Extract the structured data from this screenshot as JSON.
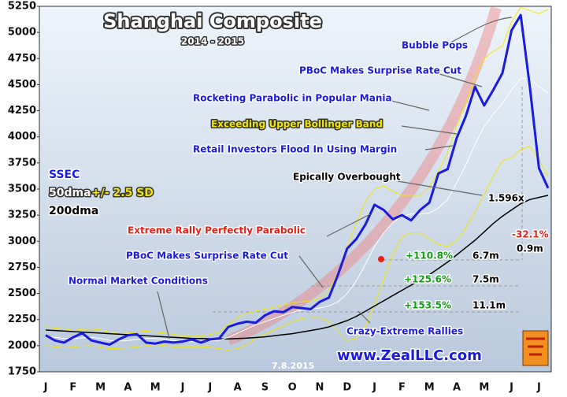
{
  "chart_data": {
    "type": "line",
    "title": "Shanghai Composite",
    "subtitle": "2014 - 2015",
    "categories": [
      "J",
      null,
      null,
      "F",
      null,
      null,
      "M",
      null,
      null,
      "A",
      null,
      null,
      "M",
      null,
      null,
      "J",
      null,
      null,
      "J",
      null,
      null,
      "A",
      null,
      null,
      "S",
      null,
      null,
      "O",
      null,
      null,
      "N",
      null,
      null,
      "D",
      null,
      null,
      "J",
      null,
      null,
      "F",
      null,
      null,
      "M",
      null,
      null,
      "A",
      null,
      null,
      "M",
      null,
      null,
      "J",
      null,
      null,
      "J",
      null
    ],
    "ylim": [
      1750,
      5250
    ],
    "yticks": [
      1750,
      2000,
      2250,
      2500,
      2750,
      3000,
      3250,
      3500,
      3750,
      4000,
      4250,
      4500,
      4750,
      5000,
      5250
    ],
    "series": [
      {
        "name": "SSEC",
        "color": "#1a1ae0",
        "values": [
          2100,
          2050,
          2030,
          2080,
          2120,
          2050,
          2030,
          2010,
          2060,
          2100,
          2110,
          2030,
          2020,
          2040,
          2030,
          2040,
          2060,
          2030,
          2060,
          2070,
          2180,
          2210,
          2230,
          2220,
          2290,
          2330,
          2320,
          2370,
          2360,
          2350,
          2420,
          2460,
          2680,
          2930,
          3020,
          3160,
          3350,
          3300,
          3210,
          3250,
          3200,
          3300,
          3370,
          3650,
          3690,
          3990,
          4200,
          4480,
          4300,
          4450,
          4610,
          5020,
          5166,
          4480,
          3700,
          3510
        ]
      },
      {
        "name": "50dma",
        "color": "#ffffff",
        "values": [
          2090,
          2080,
          2070,
          2065,
          2075,
          2080,
          2070,
          2050,
          2045,
          2050,
          2060,
          2070,
          2070,
          2060,
          2050,
          2040,
          2040,
          2040,
          2045,
          2050,
          2080,
          2120,
          2160,
          2200,
          2230,
          2260,
          2290,
          2320,
          2340,
          2350,
          2360,
          2380,
          2420,
          2500,
          2620,
          2780,
          2950,
          3080,
          3180,
          3240,
          3260,
          3260,
          3270,
          3320,
          3400,
          3560,
          3730,
          3930,
          4100,
          4220,
          4320,
          4450,
          4560,
          4560,
          4480,
          4420
        ]
      },
      {
        "name": "+/- 2.5 SD",
        "color": "#f2e600",
        "values": [
          2180,
          2170,
          2160,
          2145,
          2155,
          2160,
          2150,
          2130,
          2115,
          2120,
          2130,
          2140,
          2130,
          2120,
          2110,
          2090,
          2090,
          2090,
          2105,
          2130,
          2200,
          2270,
          2310,
          2330,
          2350,
          2370,
          2390,
          2410,
          2420,
          2430,
          2450,
          2530,
          2700,
          2950,
          3170,
          3380,
          3500,
          3530,
          3480,
          3440,
          3440,
          3440,
          3520,
          3670,
          3850,
          4110,
          4330,
          4580,
          4750,
          4820,
          4870,
          5100,
          5240,
          5210,
          5180,
          5220
        ],
        "lower": [
          2000,
          1990,
          1980,
          1985,
          1995,
          2000,
          1990,
          1970,
          1975,
          1980,
          1990,
          2000,
          2010,
          2000,
          1990,
          1990,
          1990,
          1990,
          1985,
          1970,
          1960,
          1970,
          2010,
          2070,
          2110,
          2150,
          2190,
          2230,
          2260,
          2270,
          2270,
          2230,
          2140,
          2050,
          2070,
          2180,
          2400,
          2630,
          2880,
          3040,
          3080,
          3080,
          3020,
          2970,
          2950,
          3010,
          3130,
          3280,
          3450,
          3620,
          3770,
          3800,
          3880,
          3910,
          3780,
          3620
        ]
      },
      {
        "name": "200dma",
        "color": "#000000",
        "values": [
          2150,
          2145,
          2140,
          2135,
          2130,
          2125,
          2120,
          2115,
          2110,
          2105,
          2100,
          2095,
          2090,
          2085,
          2080,
          2075,
          2070,
          2068,
          2066,
          2065,
          2065,
          2068,
          2072,
          2078,
          2085,
          2095,
          2105,
          2115,
          2130,
          2145,
          2160,
          2180,
          2210,
          2240,
          2280,
          2330,
          2380,
          2430,
          2480,
          2530,
          2580,
          2630,
          2680,
          2740,
          2800,
          2870,
          2940,
          3010,
          3090,
          3170,
          3240,
          3300,
          3360,
          3400,
          3420,
          3440
        ]
      }
    ],
    "annotations": [
      {
        "text": "Bubble Pops",
        "color": "#1a1ae0"
      },
      {
        "text": "PBoC Makes Surprise Rate Cut",
        "color": "#1a1ae0"
      },
      {
        "text": "Rocketing Parabolic in Popular Mania",
        "color": "#1a1ae0"
      },
      {
        "text": "Exceeding Upper Bollinger Band",
        "color": "#f2e600"
      },
      {
        "text": "Retail Investors Flood In Using Margin",
        "color": "#1a1ae0"
      },
      {
        "text": "Epically Overbought",
        "color": "#000000"
      },
      {
        "text": "Extreme Rally Perfectly Parabolic",
        "color": "#e8201a"
      },
      {
        "text": "PBoC Makes Surprise Rate Cut",
        "color": "#1a1ae0"
      },
      {
        "text": "Normal Market Conditions",
        "color": "#1a1ae0"
      },
      {
        "text": "Crazy-Extreme Rallies",
        "color": "#1a1ae0"
      },
      {
        "text": "1.596x",
        "color": "#000000"
      },
      {
        "text": "-32.1%",
        "color": "#e8201a"
      },
      {
        "text": "0.9m",
        "color": "#000000"
      },
      {
        "text": "+110.8%",
        "color": "#11a011"
      },
      {
        "text": "6.7m",
        "color": "#000000"
      },
      {
        "text": "+125.6%",
        "color": "#11a011"
      },
      {
        "text": "7.5m",
        "color": "#000000"
      },
      {
        "text": "+153.5%",
        "color": "#11a011"
      },
      {
        "text": "11.1m",
        "color": "#000000"
      },
      {
        "text": "www.ZealLLC.com",
        "color": "#1a1ae0"
      },
      {
        "text": "7.8.2015",
        "color": "#ffffff"
      }
    ]
  }
}
